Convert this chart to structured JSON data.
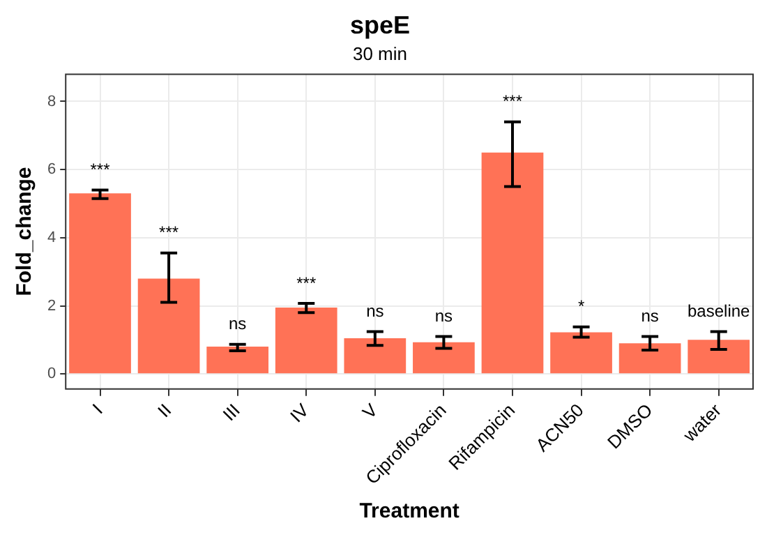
{
  "chart_data": {
    "type": "bar",
    "title": "speE",
    "subtitle": "30 min",
    "xlabel": "Treatment",
    "ylabel": "Fold_change",
    "categories": [
      "I",
      "II",
      "III",
      "IV",
      "V",
      "Ciprofloxacin",
      "Rifampicin",
      "ACN50",
      "DMSO",
      "water"
    ],
    "values": [
      5.3,
      2.8,
      0.8,
      1.95,
      1.05,
      0.93,
      6.5,
      1.22,
      0.9,
      1.0
    ],
    "errors": [
      [
        5.15,
        5.4
      ],
      [
        2.1,
        3.55
      ],
      [
        0.68,
        0.87
      ],
      [
        1.8,
        2.07
      ],
      [
        0.84,
        1.24
      ],
      [
        0.75,
        1.1
      ],
      [
        5.5,
        7.4
      ],
      [
        1.08,
        1.38
      ],
      [
        0.7,
        1.1
      ],
      [
        0.72,
        1.24
      ]
    ],
    "color": "#ff7256",
    "ylim": [
      -0.44,
      8.8
    ],
    "yticks": [
      0,
      2,
      4,
      6,
      8
    ],
    "grid": true,
    "legend": false,
    "annotations": [
      "***",
      "***",
      "ns",
      "***",
      "ns",
      "ns",
      "***",
      "*",
      "ns",
      "baseline"
    ]
  }
}
